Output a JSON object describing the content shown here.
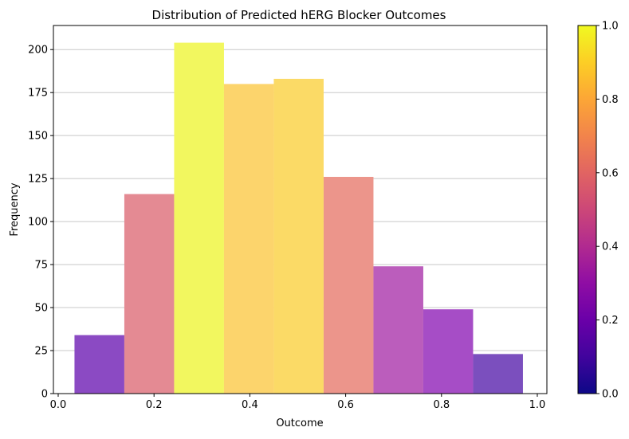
{
  "chart_data": {
    "type": "bar",
    "title": "Distribution of Predicted hERG Blocker Outcomes",
    "xlabel": "Outcome",
    "ylabel": "Frequency",
    "xlim": [
      -0.01,
      1.02
    ],
    "ylim": [
      0,
      214
    ],
    "xticks": [
      0.0,
      0.2,
      0.4,
      0.6,
      0.8,
      1.0
    ],
    "xtick_labels": [
      "0.0",
      "0.2",
      "0.4",
      "0.6",
      "0.8",
      "1.0"
    ],
    "yticks": [
      0,
      25,
      50,
      75,
      100,
      125,
      150,
      175,
      200
    ],
    "ytick_labels": [
      "0",
      "25",
      "50",
      "75",
      "100",
      "125",
      "150",
      "175",
      "200"
    ],
    "grid": "y",
    "bins": [
      {
        "x0": 0.034,
        "x1": 0.138,
        "value": 34,
        "color": "#8b4ac3"
      },
      {
        "x0": 0.138,
        "x1": 0.242,
        "value": 116,
        "color": "#e48a93"
      },
      {
        "x0": 0.242,
        "x1": 0.346,
        "value": 204,
        "color": "#f2f75f"
      },
      {
        "x0": 0.346,
        "x1": 0.45,
        "value": 180,
        "color": "#fcd46c"
      },
      {
        "x0": 0.45,
        "x1": 0.554,
        "value": 183,
        "color": "#fbda66"
      },
      {
        "x0": 0.554,
        "x1": 0.658,
        "value": 126,
        "color": "#ec958b"
      },
      {
        "x0": 0.658,
        "x1": 0.762,
        "value": 74,
        "color": "#bb5dbc"
      },
      {
        "x0": 0.762,
        "x1": 0.866,
        "value": 49,
        "color": "#a64dc6"
      },
      {
        "x0": 0.866,
        "x1": 0.97,
        "value": 23,
        "color": "#7b4fbe"
      }
    ],
    "colorbar": {
      "range": [
        0,
        1
      ],
      "ticks": [
        0.0,
        0.2,
        0.4,
        0.6,
        0.8,
        1.0
      ],
      "tick_labels": [
        "0.0",
        "0.2",
        "0.4",
        "0.6",
        "0.8",
        "1.0"
      ],
      "colormap": "plasma"
    }
  }
}
